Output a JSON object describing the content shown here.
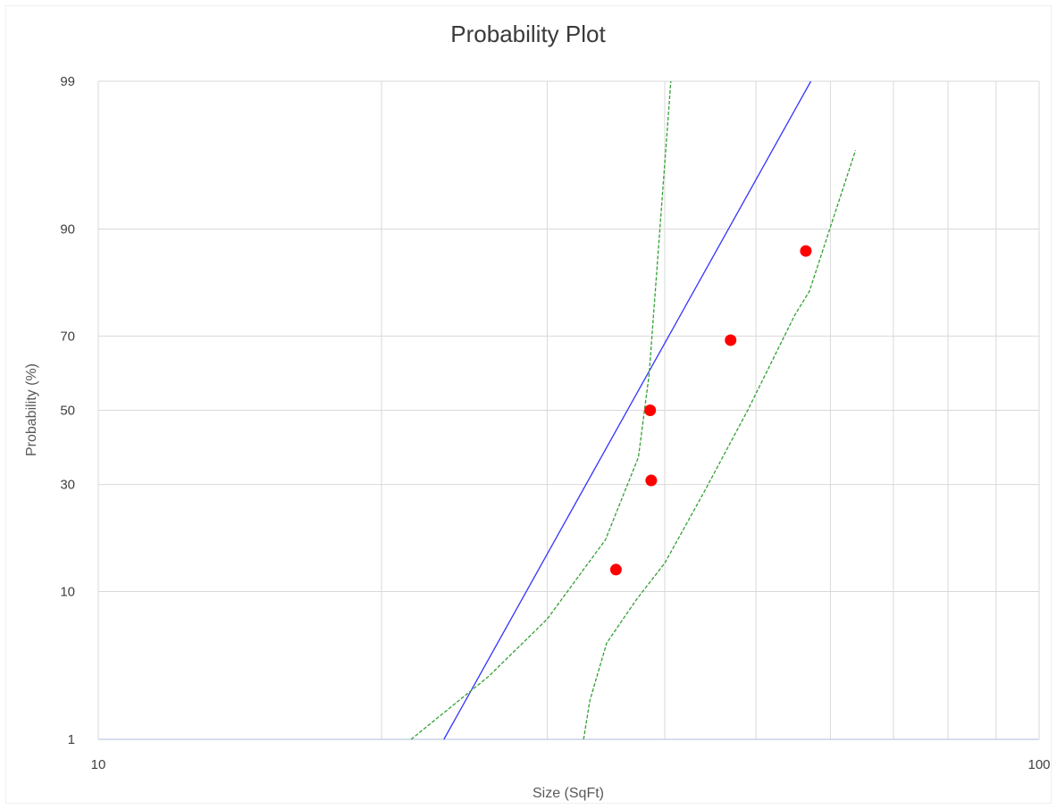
{
  "chart_data": {
    "type": "scatter",
    "title": "Probability Plot",
    "xlabel": "Size (SqFt)",
    "ylabel": "Probability (%)",
    "x_scale": "log",
    "y_scale": "probability",
    "xlim": [
      10,
      100
    ],
    "ylim": [
      1,
      99
    ],
    "x_tick_labels": [
      "10",
      "100"
    ],
    "x_tick_values": [
      10,
      100
    ],
    "x_grid_values": [
      20,
      30,
      40,
      50,
      60,
      70,
      80,
      90
    ],
    "y_tick_labels": [
      "1",
      "10",
      "30",
      "50",
      "70",
      "90",
      "99"
    ],
    "y_tick_values": [
      1,
      10,
      30,
      50,
      70,
      90,
      99
    ],
    "grid": true,
    "legend": "none",
    "colors": {
      "points": "#ff0000",
      "fit_line": "#3333ff",
      "confidence": "#33a033",
      "grid": "#d9d9d9"
    },
    "series": [
      {
        "type": "scatter",
        "x": [
          35.5,
          38.7,
          38.6,
          47.0,
          56.5
        ],
        "y": [
          13,
          31,
          50,
          69,
          87
        ]
      },
      {
        "type": "line",
        "x": [
          23.3,
          57.2
        ],
        "y": [
          1,
          99
        ]
      },
      {
        "type": "line",
        "style": "dashed",
        "x": [
          21.5,
          26.0,
          30.0,
          34.6,
          37.5,
          38.5,
          40.6
        ],
        "y": [
          1,
          3,
          7,
          18,
          37,
          60,
          99
        ]
      },
      {
        "type": "line",
        "style": "dashed",
        "x": [
          32.8,
          33.3,
          34.7,
          37.3,
          40.0,
          44.0,
          49.0,
          55.0,
          57.0,
          63.8
        ],
        "y": [
          1,
          2,
          5,
          9,
          14,
          28,
          50,
          75,
          80,
          96.7
        ]
      }
    ]
  }
}
